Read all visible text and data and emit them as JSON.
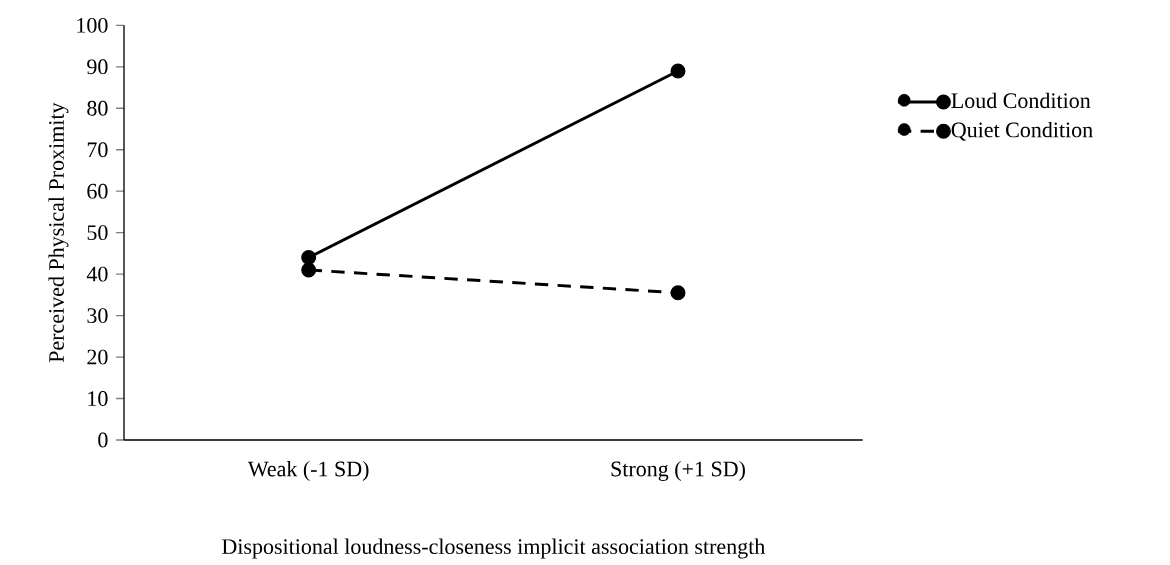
{
  "chart_data": {
    "type": "line",
    "xlabel": "Dispositional loudness-closeness implicit association strength",
    "ylabel": "Perceived Physical Proximity",
    "categories": [
      "Weak (-1 SD)",
      "Strong (+1 SD)"
    ],
    "series": [
      {
        "name": "Loud Condition",
        "color": "#000000",
        "line_style": "solid",
        "values": [
          44,
          89
        ]
      },
      {
        "name": "Quiet Condition",
        "color": "#000000",
        "line_style": "dashed",
        "values": [
          41,
          35.5
        ]
      }
    ],
    "ylim": [
      0,
      100
    ],
    "yticks": [
      0,
      10,
      20,
      30,
      40,
      50,
      60,
      70,
      80,
      90,
      100
    ],
    "marker": "circle",
    "legend": "right"
  }
}
